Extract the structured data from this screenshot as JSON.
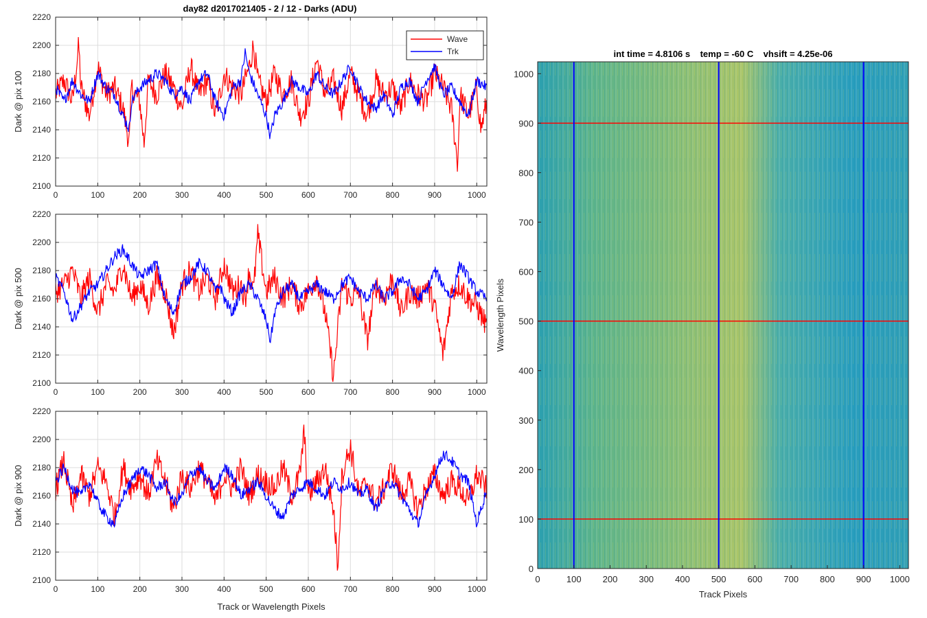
{
  "figure": {
    "title": "day82 d2017021405 - 2 / 12 - Darks (ADU)",
    "colors": {
      "wave": "#ff0000",
      "trk": "#0000ff",
      "grid": "#dcdcdc",
      "axis": "#262626"
    }
  },
  "chart_data": [
    {
      "type": "line",
      "ylabel": "Dark @ pix 100",
      "xlabel": "",
      "xlim": [
        0,
        1024
      ],
      "ylim": [
        2100,
        2220
      ],
      "xticks": [
        0,
        100,
        200,
        300,
        400,
        500,
        600,
        700,
        800,
        900,
        1000
      ],
      "yticks": [
        2100,
        2120,
        2140,
        2160,
        2180,
        2200,
        2220
      ],
      "grid": true,
      "legend": "top-right",
      "series": [
        {
          "name": "Wave",
          "color": "#ff0000",
          "x": [
            0,
            20,
            40,
            55,
            60,
            80,
            100,
            120,
            140,
            160,
            175,
            180,
            200,
            210,
            220,
            240,
            260,
            280,
            300,
            320,
            340,
            360,
            380,
            400,
            420,
            440,
            460,
            470,
            480,
            500,
            520,
            540,
            560,
            580,
            600,
            620,
            640,
            660,
            680,
            700,
            720,
            740,
            760,
            780,
            800,
            820,
            840,
            860,
            880,
            900,
            920,
            940,
            955,
            960,
            980,
            1000,
            1010,
            1024
          ],
          "y": [
            2165,
            2175,
            2160,
            2200,
            2170,
            2150,
            2185,
            2165,
            2170,
            2155,
            2130,
            2170,
            2160,
            2130,
            2175,
            2165,
            2180,
            2170,
            2155,
            2185,
            2165,
            2175,
            2150,
            2180,
            2170,
            2165,
            2185,
            2200,
            2175,
            2160,
            2180,
            2165,
            2175,
            2150,
            2160,
            2190,
            2165,
            2175,
            2155,
            2180,
            2165,
            2150,
            2175,
            2165,
            2170,
            2155,
            2175,
            2165,
            2160,
            2180,
            2170,
            2155,
            2115,
            2165,
            2150,
            2170,
            2140,
            2160
          ]
        },
        {
          "name": "Trk",
          "color": "#0000ff",
          "x": [
            0,
            20,
            40,
            60,
            80,
            100,
            120,
            140,
            160,
            175,
            180,
            200,
            220,
            240,
            260,
            280,
            300,
            320,
            340,
            360,
            380,
            400,
            420,
            440,
            450,
            460,
            480,
            500,
            510,
            520,
            540,
            560,
            580,
            600,
            620,
            640,
            660,
            680,
            700,
            720,
            740,
            760,
            780,
            800,
            820,
            840,
            860,
            880,
            900,
            920,
            940,
            960,
            980,
            1000,
            1024
          ],
          "y": [
            2170,
            2160,
            2175,
            2165,
            2160,
            2180,
            2170,
            2165,
            2150,
            2140,
            2160,
            2170,
            2175,
            2180,
            2175,
            2165,
            2170,
            2160,
            2175,
            2180,
            2160,
            2150,
            2170,
            2175,
            2195,
            2180,
            2165,
            2150,
            2135,
            2150,
            2160,
            2175,
            2170,
            2165,
            2180,
            2170,
            2165,
            2175,
            2185,
            2170,
            2160,
            2155,
            2165,
            2150,
            2170,
            2175,
            2160,
            2175,
            2185,
            2165,
            2170,
            2160,
            2150,
            2175,
            2170
          ]
        }
      ]
    },
    {
      "type": "line",
      "ylabel": "Dark @ pix 500",
      "xlabel": "",
      "xlim": [
        0,
        1024
      ],
      "ylim": [
        2100,
        2220
      ],
      "xticks": [
        0,
        100,
        200,
        300,
        400,
        500,
        600,
        700,
        800,
        900,
        1000
      ],
      "yticks": [
        2100,
        2120,
        2140,
        2160,
        2180,
        2200,
        2220
      ],
      "grid": true,
      "series": [
        {
          "name": "Wave",
          "color": "#ff0000",
          "x": [
            0,
            20,
            40,
            60,
            80,
            100,
            120,
            140,
            160,
            180,
            200,
            220,
            240,
            260,
            280,
            300,
            320,
            340,
            360,
            380,
            400,
            420,
            440,
            450,
            460,
            470,
            480,
            500,
            520,
            540,
            560,
            580,
            600,
            620,
            640,
            660,
            680,
            700,
            720,
            740,
            760,
            780,
            800,
            820,
            840,
            860,
            880,
            900,
            920,
            940,
            960,
            980,
            1000,
            1024
          ],
          "y": [
            2165,
            2170,
            2180,
            2160,
            2175,
            2150,
            2170,
            2165,
            2185,
            2160,
            2170,
            2155,
            2175,
            2165,
            2135,
            2170,
            2180,
            2165,
            2175,
            2160,
            2185,
            2165,
            2170,
            2160,
            2180,
            2165,
            2205,
            2165,
            2175,
            2160,
            2170,
            2155,
            2165,
            2175,
            2150,
            2105,
            2170,
            2160,
            2165,
            2130,
            2170,
            2160,
            2175,
            2150,
            2165,
            2160,
            2170,
            2155,
            2120,
            2165,
            2170,
            2160,
            2155,
            2140
          ]
        },
        {
          "name": "Trk",
          "color": "#0000ff",
          "x": [
            0,
            20,
            40,
            60,
            80,
            100,
            120,
            140,
            160,
            180,
            200,
            220,
            240,
            260,
            280,
            300,
            320,
            340,
            360,
            380,
            390,
            400,
            420,
            440,
            460,
            480,
            500,
            510,
            520,
            540,
            560,
            580,
            600,
            620,
            640,
            660,
            680,
            700,
            720,
            740,
            760,
            780,
            800,
            820,
            840,
            860,
            880,
            900,
            920,
            940,
            960,
            980,
            1000,
            1024
          ],
          "y": [
            2175,
            2165,
            2145,
            2155,
            2165,
            2170,
            2180,
            2190,
            2195,
            2185,
            2175,
            2180,
            2185,
            2160,
            2150,
            2170,
            2175,
            2185,
            2180,
            2165,
            2170,
            2160,
            2150,
            2165,
            2170,
            2160,
            2145,
            2130,
            2150,
            2165,
            2170,
            2160,
            2165,
            2170,
            2165,
            2160,
            2170,
            2175,
            2165,
            2160,
            2170,
            2160,
            2165,
            2175,
            2170,
            2160,
            2165,
            2180,
            2170,
            2160,
            2185,
            2175,
            2165,
            2160
          ]
        }
      ]
    },
    {
      "type": "line",
      "ylabel": "Dark @ pix 900",
      "xlabel": "Track or Wavelength Pixels",
      "xlim": [
        0,
        1024
      ],
      "ylim": [
        2100,
        2220
      ],
      "xticks": [
        0,
        100,
        200,
        300,
        400,
        500,
        600,
        700,
        800,
        900,
        1000
      ],
      "yticks": [
        2100,
        2120,
        2140,
        2160,
        2180,
        2200,
        2220
      ],
      "grid": true,
      "series": [
        {
          "name": "Wave",
          "color": "#ff0000",
          "x": [
            0,
            20,
            40,
            60,
            80,
            100,
            120,
            140,
            160,
            180,
            200,
            220,
            240,
            260,
            280,
            300,
            320,
            340,
            360,
            380,
            400,
            420,
            440,
            460,
            480,
            500,
            520,
            540,
            560,
            580,
            590,
            600,
            620,
            640,
            660,
            670,
            680,
            700,
            720,
            740,
            760,
            780,
            800,
            820,
            840,
            860,
            880,
            900,
            920,
            940,
            960,
            980,
            1000,
            1024
          ],
          "y": [
            2165,
            2185,
            2150,
            2175,
            2160,
            2180,
            2170,
            2145,
            2180,
            2165,
            2175,
            2160,
            2185,
            2170,
            2150,
            2175,
            2165,
            2180,
            2170,
            2155,
            2175,
            2165,
            2180,
            2160,
            2175,
            2170,
            2165,
            2180,
            2160,
            2175,
            2205,
            2160,
            2170,
            2180,
            2150,
            2110,
            2175,
            2195,
            2160,
            2170,
            2155,
            2165,
            2180,
            2160,
            2170,
            2150,
            2165,
            2175,
            2160,
            2170,
            2165,
            2155,
            2175,
            2165
          ]
        },
        {
          "name": "Trk",
          "color": "#0000ff",
          "x": [
            0,
            20,
            40,
            60,
            80,
            100,
            120,
            140,
            160,
            180,
            200,
            220,
            240,
            260,
            280,
            300,
            320,
            340,
            360,
            380,
            400,
            420,
            440,
            460,
            480,
            500,
            520,
            540,
            560,
            580,
            600,
            620,
            640,
            660,
            680,
            700,
            720,
            740,
            760,
            780,
            800,
            820,
            840,
            860,
            880,
            900,
            920,
            940,
            960,
            980,
            1000,
            1024
          ],
          "y": [
            2170,
            2180,
            2165,
            2160,
            2170,
            2155,
            2145,
            2140,
            2160,
            2170,
            2180,
            2175,
            2165,
            2170,
            2155,
            2160,
            2175,
            2180,
            2170,
            2165,
            2180,
            2175,
            2160,
            2165,
            2170,
            2160,
            2150,
            2145,
            2160,
            2165,
            2170,
            2165,
            2160,
            2170,
            2165,
            2170,
            2160,
            2165,
            2150,
            2165,
            2170,
            2160,
            2150,
            2140,
            2160,
            2175,
            2190,
            2185,
            2175,
            2170,
            2140,
            2165
          ]
        }
      ]
    },
    {
      "type": "heatmap",
      "title": "int time = 4.8106 s    temp = -60 C    vhsift = 4.25e-06",
      "xlabel": "Track Pixels",
      "ylabel": "Wavelength Pixels",
      "xlim": [
        0,
        1024
      ],
      "ylim": [
        0,
        1024
      ],
      "xticks": [
        0,
        100,
        200,
        300,
        400,
        500,
        600,
        700,
        800,
        900,
        1000
      ],
      "yticks": [
        0,
        100,
        200,
        300,
        400,
        500,
        600,
        700,
        800,
        900,
        1000
      ],
      "grid": false,
      "vertical_lines": {
        "x": [
          100,
          500,
          900
        ],
        "color": "#0000ff"
      },
      "horizontal_lines": {
        "y": [
          100,
          500,
          900
        ],
        "color": "#ff0000"
      },
      "colors": {
        "low": "#1f96b8",
        "mid": "#5cb48a",
        "high": "#c8c85a"
      }
    }
  ]
}
